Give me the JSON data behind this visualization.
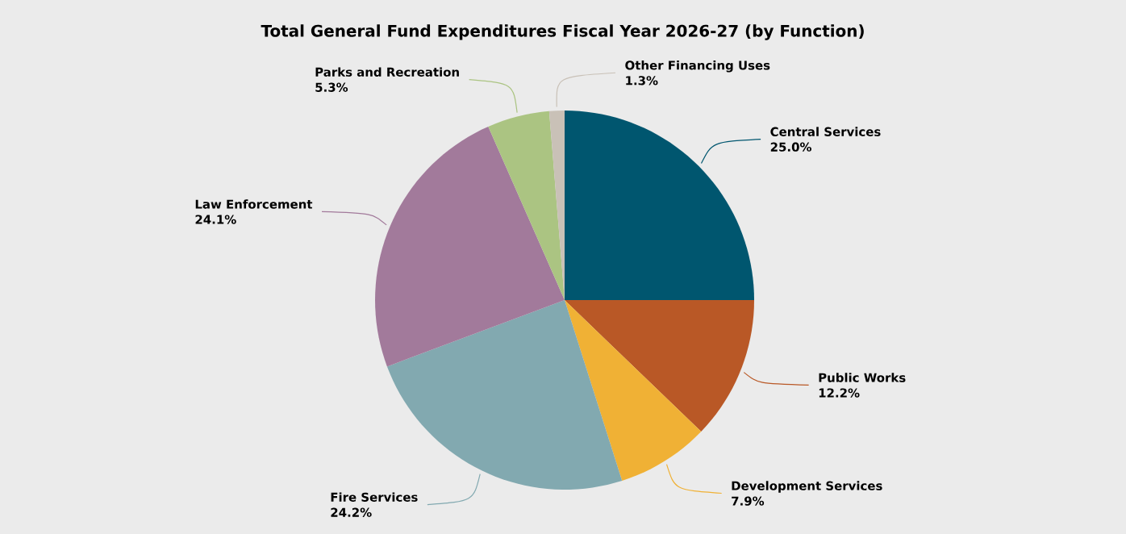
{
  "chart_data": {
    "type": "pie",
    "title": "Total General Fund Expenditures Fiscal Year 2026-27 (by Function)",
    "categories": [
      "Central Services",
      "Public Works",
      "Development Services",
      "Fire Services",
      "Law Enforcement",
      "Parks and Recreation",
      "Other Financing Uses"
    ],
    "values": [
      25.0,
      12.2,
      7.9,
      24.2,
      24.1,
      5.3,
      1.3
    ],
    "value_labels": [
      "25.0%",
      "12.2%",
      "7.9%",
      "24.2%",
      "24.1%",
      "5.3%",
      "1.3%"
    ],
    "colors": [
      "#00566f",
      "#b95826",
      "#f0b135",
      "#82a9b0",
      "#a27a9b",
      "#abc482",
      "#c9c1b7"
    ]
  }
}
